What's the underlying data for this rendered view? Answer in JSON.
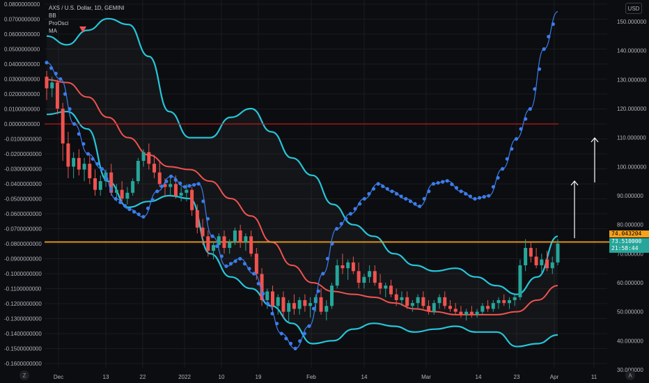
{
  "legend": {
    "symbol": "AXS / U.S. Dollar, 1D, GEMINI",
    "items": [
      "BB",
      "ProOsci",
      "MA"
    ]
  },
  "currency_badge": "USD",
  "corner_left": "Z",
  "corner_right": "A",
  "price_labels": {
    "orange_line": "74.043204",
    "current_price": "73.510000",
    "countdown": "21:58:44"
  },
  "colors": {
    "background": "#0c0d10",
    "up": "#26a69a",
    "down": "#ef5350",
    "bb": "#26c6da",
    "ma": "#ef5350",
    "osc": "#3b7ded",
    "orange": "#f7a21b",
    "red_line": "#b71c1c"
  },
  "chart_data": {
    "type": "candlestick",
    "title": "AXS / U.S. Dollar, 1D, GEMINI",
    "x_ticks": [
      "Dec",
      "13",
      "22",
      "2022",
      "10",
      "19",
      "Feb",
      "14",
      "Mar",
      "14",
      "23",
      "Apr",
      "11"
    ],
    "right_axis": {
      "ticks": [
        "150.000000",
        "140.000000",
        "130.000000",
        "120.000000",
        "110.000000",
        "100.000000",
        "90.000000",
        "80.000000",
        "70.000000",
        "60.000000",
        "50.000000",
        "40.000000",
        "30.000000"
      ],
      "range": [
        30,
        150
      ]
    },
    "left_axis": {
      "ticks": [
        "0.0800000000",
        "0.0700000000",
        "0.0600000000",
        "0.0500000000",
        "0.0400000000",
        "0.0300000000",
        "0.0200000000",
        "0.0100000000",
        "0.0000000000",
        "-0.0100000000",
        "-0.0200000000",
        "-0.0300000000",
        "-0.0400000000",
        "-0.0500000000",
        "-0.0600000000",
        "-0.0700000000",
        "-0.0800000000",
        "-0.0900000000",
        "-0.1000000000",
        "-0.1100000000",
        "-0.1200000000",
        "-0.1300000000",
        "-0.1400000000",
        "-0.1500000000",
        "-0.1600000000"
      ],
      "range": [
        -0.16,
        0.08
      ]
    },
    "horizontal_lines": [
      {
        "axis": "left",
        "value": 0.0,
        "color": "#b71c1c"
      },
      {
        "axis": "right",
        "value": 74.04,
        "color": "#f7a21b"
      }
    ],
    "series": [
      {
        "name": "Price",
        "values": [
          [
            131,
            133,
            123,
            127
          ],
          [
            127,
            131,
            124,
            129
          ],
          [
            129,
            130,
            118,
            120
          ],
          [
            120,
            122,
            102,
            108
          ],
          [
            108,
            112,
            96,
            100
          ],
          [
            100,
            105,
            96,
            103
          ],
          [
            103,
            106,
            97,
            99
          ],
          [
            99,
            103,
            95,
            101
          ],
          [
            101,
            104,
            94,
            96
          ],
          [
            96,
            99,
            90,
            92
          ],
          [
            92,
            97,
            90,
            95
          ],
          [
            95,
            99,
            93,
            98
          ],
          [
            98,
            101,
            90,
            91
          ],
          [
            91,
            94,
            88,
            92
          ],
          [
            92,
            95,
            87,
            89
          ],
          [
            89,
            93,
            87,
            91
          ],
          [
            91,
            96,
            90,
            95
          ],
          [
            95,
            103,
            94,
            102
          ],
          [
            102,
            106,
            100,
            105
          ],
          [
            105,
            108,
            99,
            101
          ],
          [
            101,
            104,
            96,
            98
          ],
          [
            98,
            102,
            93,
            94
          ],
          [
            94,
            96,
            90,
            93
          ],
          [
            93,
            96,
            90,
            94
          ],
          [
            94,
            97,
            89,
            90
          ],
          [
            90,
            93,
            88,
            91
          ],
          [
            91,
            94,
            88,
            92
          ],
          [
            92,
            93,
            83,
            85
          ],
          [
            85,
            87,
            77,
            79
          ],
          [
            79,
            82,
            73,
            76
          ],
          [
            76,
            78,
            69,
            71
          ],
          [
            71,
            74,
            68,
            73
          ],
          [
            73,
            77,
            71,
            76
          ],
          [
            76,
            78,
            70,
            72
          ],
          [
            72,
            75,
            70,
            74
          ],
          [
            74,
            79,
            73,
            78
          ],
          [
            78,
            80,
            72,
            74
          ],
          [
            74,
            77,
            71,
            76
          ],
          [
            76,
            78,
            69,
            70
          ],
          [
            70,
            72,
            61,
            63
          ],
          [
            63,
            65,
            52,
            54
          ],
          [
            54,
            58,
            51,
            57
          ],
          [
            57,
            59,
            50,
            52
          ],
          [
            52,
            56,
            49,
            55
          ],
          [
            55,
            57,
            48,
            50
          ],
          [
            50,
            54,
            46,
            53
          ],
          [
            53,
            56,
            49,
            51
          ],
          [
            51,
            55,
            49,
            54
          ],
          [
            54,
            56,
            50,
            52
          ],
          [
            52,
            55,
            48,
            53
          ],
          [
            53,
            56,
            50,
            55
          ],
          [
            55,
            58,
            49,
            50
          ],
          [
            50,
            54,
            47,
            52
          ],
          [
            52,
            60,
            51,
            59
          ],
          [
            59,
            68,
            58,
            66
          ],
          [
            66,
            70,
            63,
            65
          ],
          [
            65,
            68,
            61,
            67
          ],
          [
            67,
            69,
            63,
            64
          ],
          [
            64,
            67,
            58,
            60
          ],
          [
            60,
            63,
            58,
            62
          ],
          [
            62,
            66,
            60,
            64
          ],
          [
            64,
            66,
            59,
            60
          ],
          [
            60,
            63,
            56,
            58
          ],
          [
            58,
            60,
            55,
            59
          ],
          [
            59,
            61,
            55,
            56
          ],
          [
            56,
            58,
            52,
            54
          ],
          [
            54,
            57,
            52,
            55
          ],
          [
            55,
            57,
            51,
            52
          ],
          [
            52,
            54,
            50,
            53
          ],
          [
            53,
            56,
            51,
            55
          ],
          [
            55,
            57,
            51,
            52
          ],
          [
            52,
            54,
            49,
            50
          ],
          [
            50,
            54,
            49,
            53
          ],
          [
            53,
            56,
            51,
            55
          ],
          [
            55,
            57,
            51,
            52
          ],
          [
            52,
            54,
            50,
            51
          ],
          [
            51,
            53,
            49,
            50
          ],
          [
            50,
            52,
            48,
            49
          ],
          [
            49,
            51,
            47,
            50
          ],
          [
            50,
            52,
            48,
            49
          ],
          [
            49,
            51,
            48,
            50
          ],
          [
            50,
            53,
            49,
            52
          ],
          [
            52,
            54,
            50,
            51
          ],
          [
            51,
            54,
            50,
            53
          ],
          [
            53,
            55,
            51,
            54
          ],
          [
            54,
            56,
            52,
            53
          ],
          [
            53,
            55,
            51,
            54
          ],
          [
            54,
            56,
            52,
            55
          ],
          [
            55,
            68,
            54,
            66
          ],
          [
            66,
            75,
            64,
            72
          ],
          [
            72,
            74,
            67,
            69
          ],
          [
            69,
            72,
            65,
            66
          ],
          [
            66,
            70,
            63,
            68
          ],
          [
            68,
            71,
            64,
            65
          ],
          [
            65,
            69,
            63,
            67
          ],
          [
            67,
            75,
            66,
            73.51
          ]
        ]
      },
      {
        "name": "BB",
        "upper": [
          145,
          142,
          147,
          151,
          149,
          138,
          119,
          110,
          110,
          117,
          120,
          112,
          103,
          97,
          87,
          80,
          76,
          70,
          66,
          64,
          65,
          62,
          59,
          56,
          62,
          76
        ],
        "lower": [
          118,
          119,
          113,
          95,
          86,
          88,
          90,
          89,
          70,
          62,
          58,
          52,
          46,
          39,
          40,
          44,
          46,
          45,
          43,
          44,
          45,
          43,
          43,
          38,
          39,
          42
        ]
      },
      {
        "name": "MA",
        "values": [
          130,
          129,
          124,
          117,
          110,
          104,
          100,
          99,
          95,
          89,
          83,
          74,
          66,
          60,
          57,
          56,
          55,
          53,
          51,
          50,
          49,
          49,
          49,
          50,
          54,
          59
        ]
      },
      {
        "name": "ProOsci",
        "values": [
          0.041,
          0.03,
          0.0,
          -0.02,
          -0.03,
          -0.05,
          -0.057,
          -0.062,
          -0.045,
          -0.035,
          -0.042,
          -0.04,
          -0.075,
          -0.095,
          -0.09,
          -0.1,
          -0.12,
          -0.14,
          -0.15,
          -0.135,
          -0.1,
          -0.07,
          -0.06,
          -0.05,
          -0.04,
          -0.045,
          -0.05,
          -0.055,
          -0.04,
          -0.038,
          -0.045,
          -0.05,
          -0.048,
          -0.03,
          -0.01,
          0.01,
          0.05,
          0.075
        ]
      }
    ]
  }
}
